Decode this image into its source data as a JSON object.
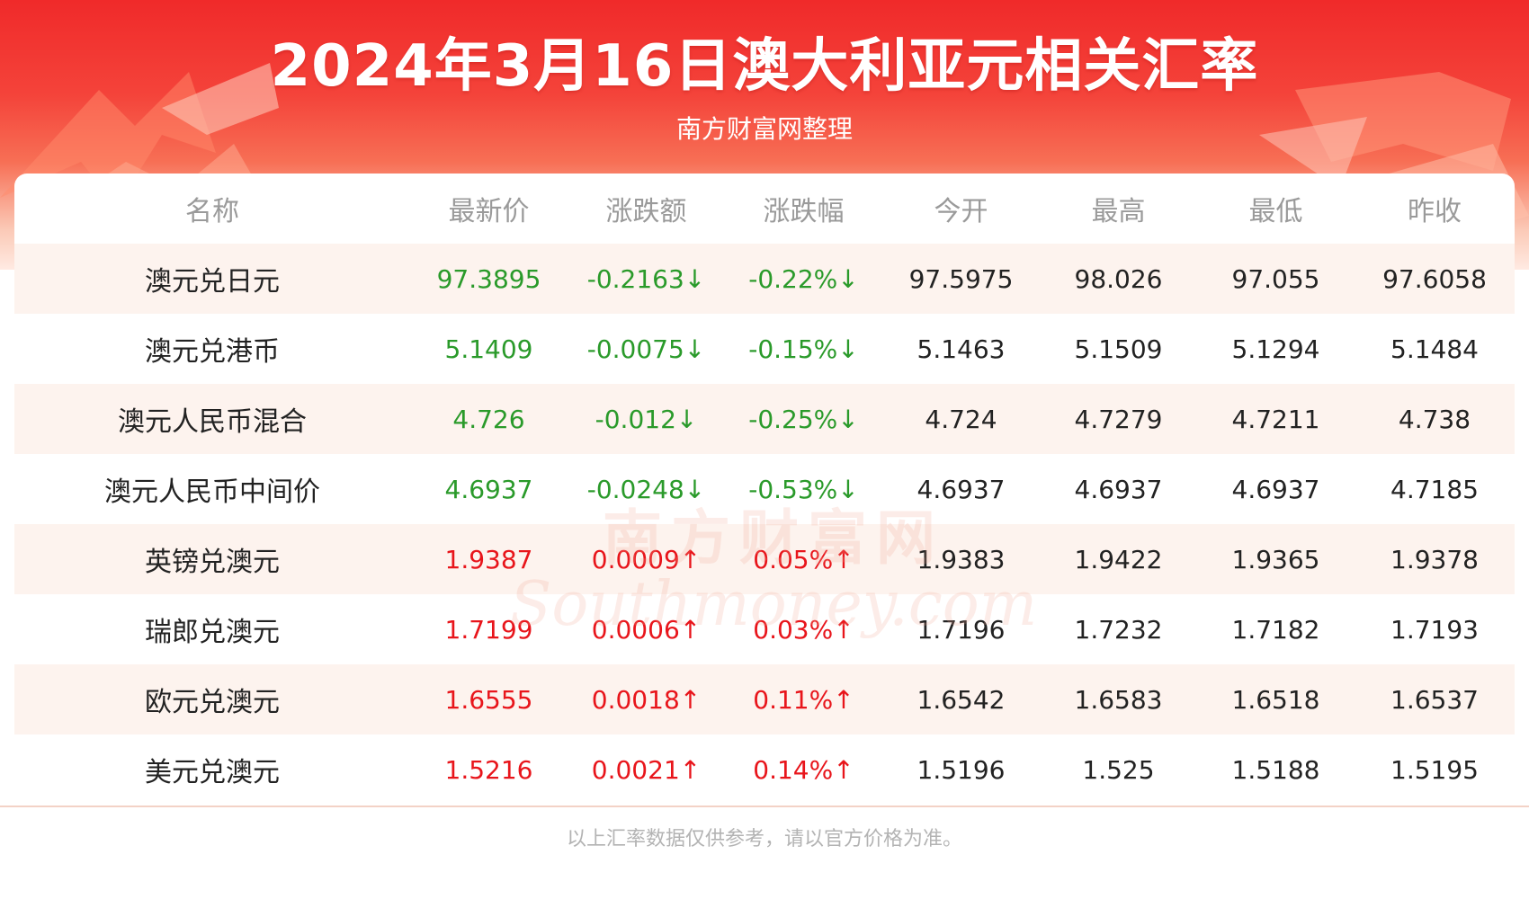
{
  "title": "2024年3月16日澳大利亚元相关汇率",
  "subtitle": "南方财富网整理",
  "colors": {
    "banner_red": "#f02a2a",
    "down_green": "#2a9a2a",
    "up_red": "#e8151b",
    "row_tint": "#fdf3ee"
  },
  "table": {
    "headers": [
      "名称",
      "最新价",
      "涨跌额",
      "涨跌幅",
      "今开",
      "最高",
      "最低",
      "昨收"
    ],
    "rows": [
      {
        "name": "澳元兑日元",
        "latest": "97.3895",
        "change": "-0.2163↓",
        "pct": "-0.22%↓",
        "open": "97.5975",
        "high": "98.026",
        "low": "97.055",
        "prev": "97.6058",
        "trend": "down"
      },
      {
        "name": "澳元兑港币",
        "latest": "5.1409",
        "change": "-0.0075↓",
        "pct": "-0.15%↓",
        "open": "5.1463",
        "high": "5.1509",
        "low": "5.1294",
        "prev": "5.1484",
        "trend": "down"
      },
      {
        "name": "澳元人民币混合",
        "latest": "4.726",
        "change": "-0.012↓",
        "pct": "-0.25%↓",
        "open": "4.724",
        "high": "4.7279",
        "low": "4.7211",
        "prev": "4.738",
        "trend": "down"
      },
      {
        "name": "澳元人民币中间价",
        "latest": "4.6937",
        "change": "-0.0248↓",
        "pct": "-0.53%↓",
        "open": "4.6937",
        "high": "4.6937",
        "low": "4.6937",
        "prev": "4.7185",
        "trend": "down"
      },
      {
        "name": "英镑兑澳元",
        "latest": "1.9387",
        "change": "0.0009↑",
        "pct": "0.05%↑",
        "open": "1.9383",
        "high": "1.9422",
        "low": "1.9365",
        "prev": "1.9378",
        "trend": "up"
      },
      {
        "name": "瑞郎兑澳元",
        "latest": "1.7199",
        "change": "0.0006↑",
        "pct": "0.03%↑",
        "open": "1.7196",
        "high": "1.7232",
        "low": "1.7182",
        "prev": "1.7193",
        "trend": "up"
      },
      {
        "name": "欧元兑澳元",
        "latest": "1.6555",
        "change": "0.0018↑",
        "pct": "0.11%↑",
        "open": "1.6542",
        "high": "1.6583",
        "low": "1.6518",
        "prev": "1.6537",
        "trend": "up"
      },
      {
        "name": "美元兑澳元",
        "latest": "1.5216",
        "change": "0.0021↑",
        "pct": "0.14%↑",
        "open": "1.5196",
        "high": "1.525",
        "low": "1.5188",
        "prev": "1.5195",
        "trend": "up"
      }
    ]
  },
  "watermark": {
    "cn": "南方财富网",
    "en": "Southmoney.com"
  },
  "footer": "以上汇率数据仅供参考，请以官方价格为准。"
}
